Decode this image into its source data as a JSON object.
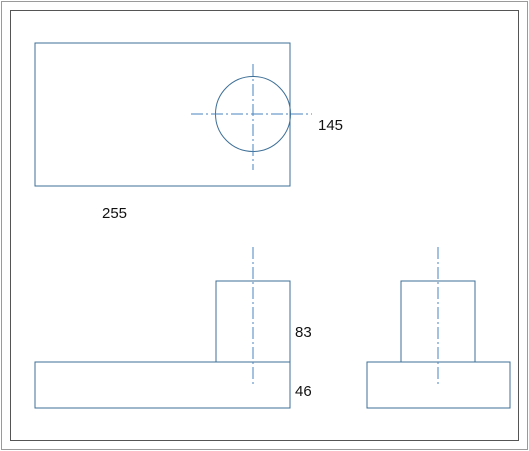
{
  "drawing": {
    "dimensions": {
      "top_width": "255",
      "top_height": "145",
      "boss_height": "83",
      "base_height": "46"
    }
  },
  "colors": {
    "outline": "#3d6f96",
    "centerline": "#4a86c0",
    "frame": "#9a9a9a",
    "text": "#111111"
  }
}
